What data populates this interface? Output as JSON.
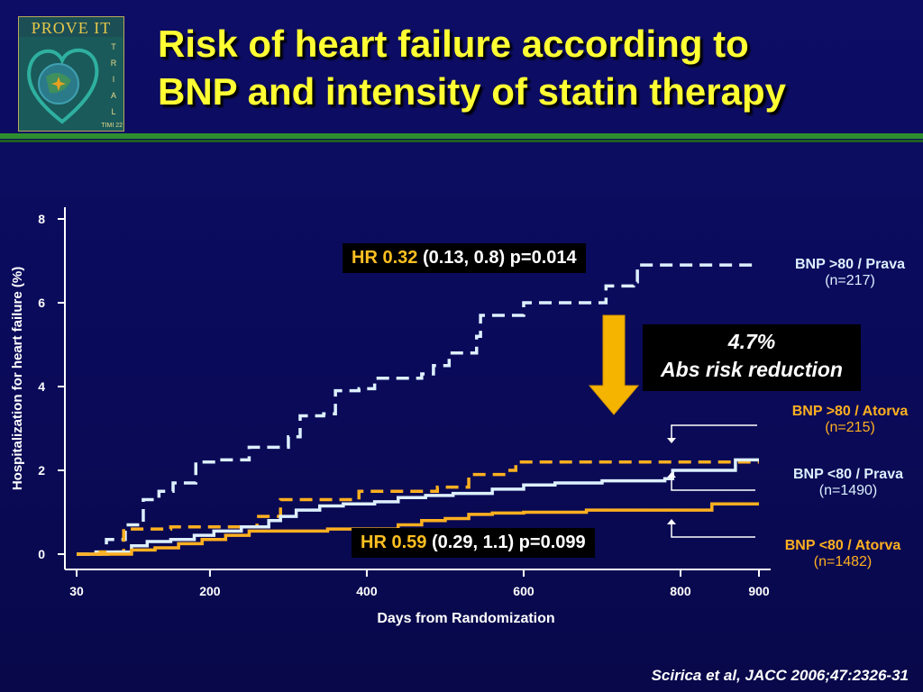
{
  "header": {
    "title_line1": "Risk of heart failure according to",
    "title_line2": "BNP and intensity of statin therapy"
  },
  "logo": {
    "band_text": "PROVE IT",
    "side_letters": [
      "T",
      "R",
      "I",
      "A",
      "L"
    ],
    "footer_text": "TIMI 22"
  },
  "hr_top": {
    "label": "HR",
    "value": "0.32",
    "rest": "(0.13, 0.8) p=0.014"
  },
  "hr_bottom": {
    "label": "HR",
    "value": "0.59",
    "rest": "(0.29, 1.1) p=0.099"
  },
  "reduction": {
    "line1": "4.7%",
    "line2": "Abs risk reduction"
  },
  "legend": [
    {
      "name": "BNP >80 / Prava",
      "n": "(n=217)",
      "color": "#ddf0ff"
    },
    {
      "name": "BNP >80 / Atorva",
      "n": "(n=215)",
      "color": "#ffb020"
    },
    {
      "name": "BNP <80 / Prava",
      "n": "(n=1490)",
      "color": "#ddf0ff"
    },
    {
      "name": "BNP <80 / Atorva",
      "n": "(n=1482)",
      "color": "#ffb020"
    }
  ],
  "citation": "Scirica et al, JACC 2006;47:2326-31",
  "colors": {
    "title": "#ffff33",
    "accent": "#ffc020",
    "background": "#0b0b5e",
    "prava": "#ddf0ff",
    "atorva": "#ffb020"
  },
  "chart_data": {
    "type": "line",
    "title": "",
    "xlabel": "Days from Randomization",
    "ylabel": "Hospitalization for heart failure (%)",
    "xlim": [
      30,
      900
    ],
    "ylim": [
      0,
      8
    ],
    "xticks": [
      30,
      200,
      400,
      600,
      800,
      900
    ],
    "yticks": [
      0,
      2,
      4,
      6,
      8
    ],
    "grid": false,
    "series": [
      {
        "name": "BNP >80 / Prava",
        "style": "dashed",
        "color": "#ddf0ff",
        "x": [
          30,
          45,
          62,
          68,
          90,
          92,
          102,
          115,
          135,
          153,
          182,
          210,
          250,
          300,
          315,
          345,
          360,
          390,
          410,
          420,
          470,
          485,
          505,
          530,
          540,
          545,
          590,
          600,
          650,
          655,
          705,
          740,
          745,
          900
        ],
        "y": [
          0,
          0.05,
          0.05,
          0.35,
          0.35,
          0.7,
          0.7,
          1.3,
          1.5,
          1.7,
          2.2,
          2.25,
          2.55,
          2.8,
          3.3,
          3.35,
          3.9,
          3.95,
          4.2,
          4.2,
          4.3,
          4.5,
          4.8,
          4.8,
          5.2,
          5.7,
          5.7,
          6.0,
          6.0,
          6.0,
          6.4,
          6.5,
          6.9,
          6.9
        ]
      },
      {
        "name": "BNP >80 / Atorva",
        "style": "dashed",
        "color": "#ffb020",
        "x": [
          30,
          60,
          90,
          150,
          210,
          260,
          290,
          300,
          380,
          390,
          430,
          490,
          520,
          530,
          580,
          590,
          900
        ],
        "y": [
          0,
          0.05,
          0.6,
          0.65,
          0.65,
          0.9,
          1.3,
          1.3,
          1.3,
          1.5,
          1.5,
          1.6,
          1.6,
          1.9,
          2.0,
          2.2,
          2.2
        ]
      },
      {
        "name": "BNP <80 / Prava",
        "style": "solid",
        "color": "#ddf0ff",
        "x": [
          30,
          70,
          100,
          120,
          150,
          180,
          205,
          240,
          275,
          290,
          310,
          340,
          370,
          410,
          440,
          475,
          510,
          560,
          600,
          640,
          700,
          780,
          790,
          860,
          870,
          900
        ],
        "y": [
          0,
          0.05,
          0.2,
          0.3,
          0.35,
          0.45,
          0.55,
          0.65,
          0.8,
          0.9,
          1.05,
          1.15,
          1.2,
          1.25,
          1.35,
          1.4,
          1.45,
          1.55,
          1.65,
          1.7,
          1.75,
          1.8,
          2.0,
          2.0,
          2.25,
          2.25
        ]
      },
      {
        "name": "BNP <80 / Atorva",
        "style": "solid",
        "color": "#ffb020",
        "x": [
          30,
          60,
          100,
          130,
          160,
          190,
          220,
          250,
          300,
          350,
          400,
          440,
          470,
          500,
          530,
          560,
          600,
          680,
          750,
          830,
          840,
          900
        ],
        "y": [
          0,
          0.0,
          0.1,
          0.15,
          0.25,
          0.35,
          0.45,
          0.55,
          0.55,
          0.6,
          0.6,
          0.7,
          0.8,
          0.85,
          0.95,
          0.98,
          1.0,
          1.05,
          1.05,
          1.05,
          1.2,
          1.2
        ]
      }
    ]
  }
}
